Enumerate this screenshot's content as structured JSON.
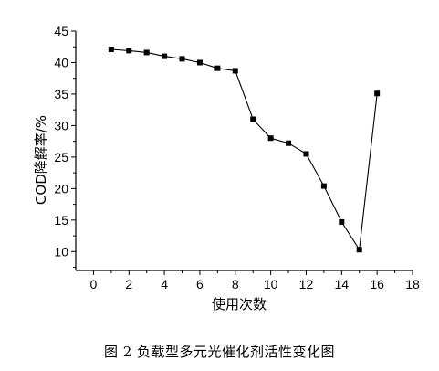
{
  "caption": "图 2   负载型多元光催化剂活性变化图",
  "chart_data": {
    "type": "line",
    "xlabel": "使用次数",
    "ylabel": "COD降解率/%",
    "xlim": [
      -1,
      18
    ],
    "ylim": [
      7,
      45
    ],
    "xticks": [
      0,
      2,
      4,
      6,
      8,
      10,
      12,
      14,
      16,
      18
    ],
    "yticks": [
      10,
      15,
      20,
      25,
      30,
      35,
      40,
      45
    ],
    "grid": false,
    "series": [
      {
        "x": [
          1,
          2,
          3,
          4,
          5,
          6,
          7,
          8,
          9,
          10,
          11,
          12,
          13,
          14,
          15,
          16
        ],
        "y": [
          42.1,
          41.9,
          41.6,
          41.0,
          40.6,
          40.0,
          39.1,
          38.7,
          31.0,
          28.0,
          27.2,
          25.5,
          20.4,
          14.7,
          10.3,
          35.1
        ],
        "color": "#000000",
        "marker": "square"
      }
    ]
  }
}
